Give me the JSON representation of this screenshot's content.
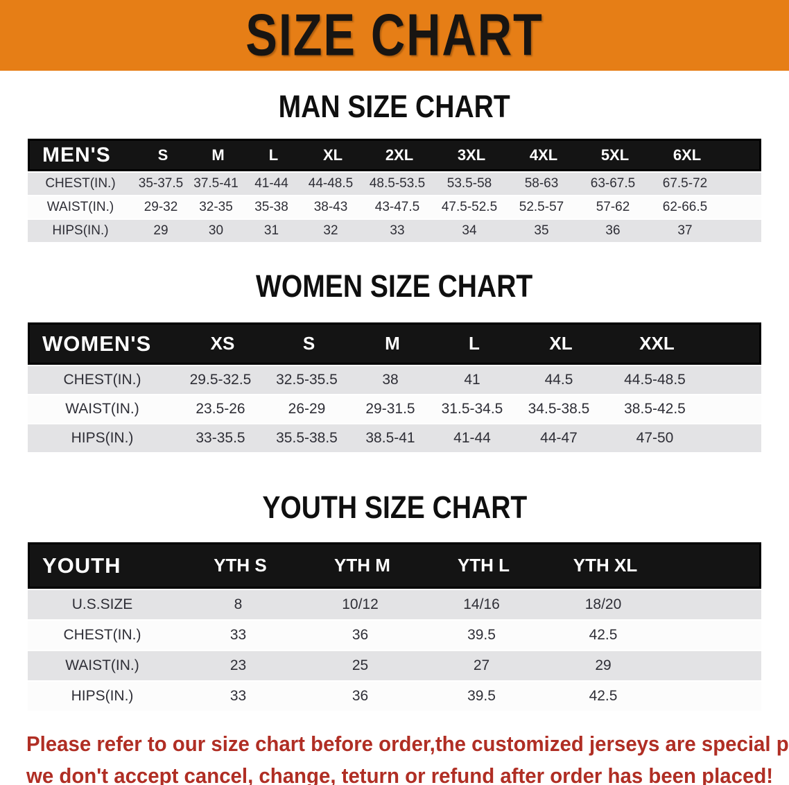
{
  "banner": {
    "title": "SIZE CHART",
    "bg_color": "#e67e16",
    "text_color": "#181512"
  },
  "sections": {
    "men": {
      "heading": "MAN SIZE CHART",
      "table": {
        "label": "MEN'S",
        "columns": [
          "S",
          "M",
          "L",
          "XL",
          "2XL",
          "3XL",
          "4XL",
          "5XL",
          "6XL"
        ],
        "rows": [
          {
            "label": "CHEST(IN.)",
            "values": [
              "35-37.5",
              "37.5-41",
              "41-44",
              "44-48.5",
              "48.5-53.5",
              "53.5-58",
              "58-63",
              "63-67.5",
              "67.5-72"
            ]
          },
          {
            "label": "WAIST(IN.)",
            "values": [
              "29-32",
              "32-35",
              "35-38",
              "38-43",
              "43-47.5",
              "47.5-52.5",
              "52.5-57",
              "57-62",
              "62-66.5"
            ]
          },
          {
            "label": "HIPS(IN.)",
            "values": [
              "29",
              "30",
              "31",
              "32",
              "33",
              "34",
              "35",
              "36",
              "37"
            ]
          }
        ]
      }
    },
    "women": {
      "heading": "WOMEN SIZE CHART",
      "table": {
        "label": "WOMEN'S",
        "columns": [
          "XS",
          "S",
          "M",
          "L",
          "XL",
          "XXL"
        ],
        "rows": [
          {
            "label": "CHEST(IN.)",
            "values": [
              "29.5-32.5",
              "32.5-35.5",
              "38",
              "41",
              "44.5",
              "44.5-48.5"
            ]
          },
          {
            "label": "WAIST(IN.)",
            "values": [
              "23.5-26",
              "26-29",
              "29-31.5",
              "31.5-34.5",
              "34.5-38.5",
              "38.5-42.5"
            ]
          },
          {
            "label": "HIPS(IN.)",
            "values": [
              "33-35.5",
              "35.5-38.5",
              "38.5-41",
              "41-44",
              "44-47",
              "47-50"
            ]
          }
        ]
      }
    },
    "youth": {
      "heading": "YOUTH SIZE CHART",
      "table": {
        "label": "YOUTH",
        "columns": [
          "YTH S",
          "YTH M",
          "YTH L",
          "YTH XL"
        ],
        "rows": [
          {
            "label": "U.S.SIZE",
            "values": [
              "8",
              "10/12",
              "14/16",
              "18/20"
            ]
          },
          {
            "label": "CHEST(IN.)",
            "values": [
              "33",
              "36",
              "39.5",
              "42.5"
            ]
          },
          {
            "label": "WAIST(IN.)",
            "values": [
              "23",
              "25",
              "27",
              "29"
            ]
          },
          {
            "label": "HIPS(IN.)",
            "values": [
              "33",
              "36",
              "39.5",
              "42.5"
            ]
          }
        ]
      }
    }
  },
  "disclaimer": {
    "line1": "Please refer to our size chart before order,the customized jerseys are special products,",
    "line2": "we don't accept cancel, change, teturn or refund after order has been placed!",
    "color": "#b02e24"
  }
}
